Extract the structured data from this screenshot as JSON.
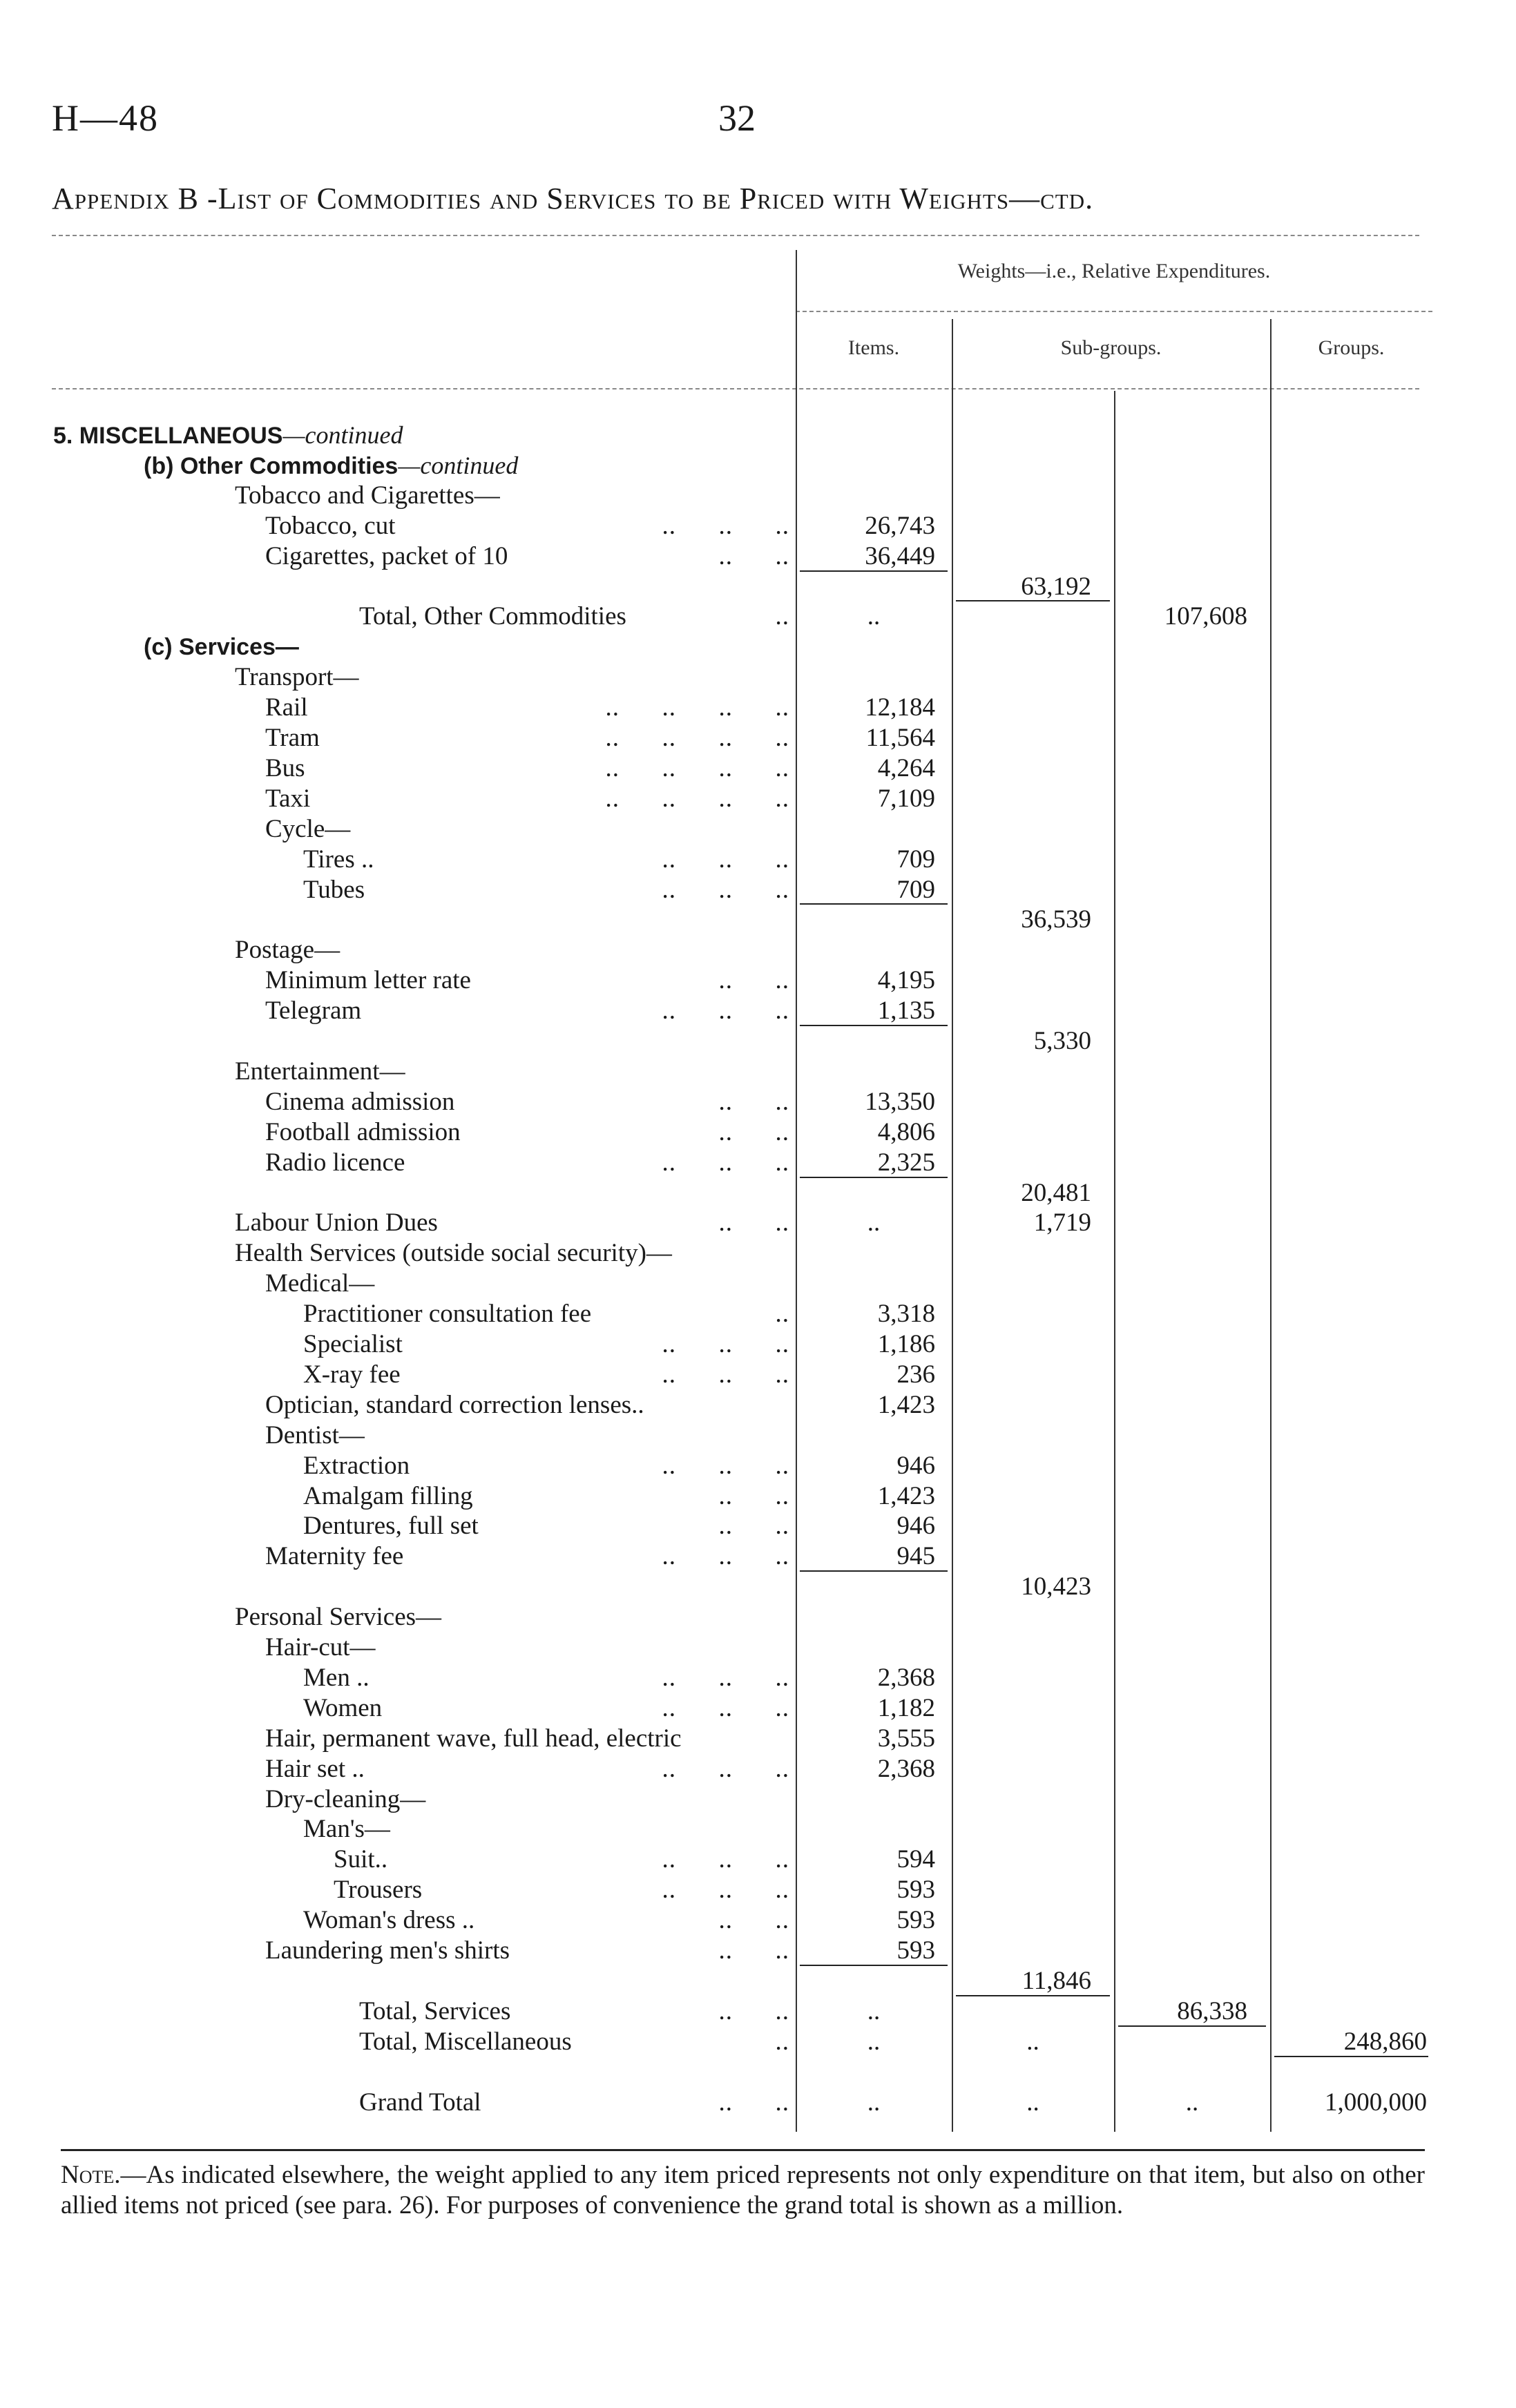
{
  "header": {
    "page_id": "H—48",
    "page_number": "32"
  },
  "title": "Appendix B -List of Commodities and Services to be Priced with Weights—ctd.",
  "column_headers": {
    "group_header": "Weights—i.e., Relative Expenditures.",
    "items": "Items.",
    "sub_groups": "Sub-groups.",
    "groups": "Groups."
  },
  "rows": [
    {
      "label": "5. MISCELLANEOUS",
      "suffix": "—continued",
      "level": 0,
      "bold": true
    },
    {
      "label": "(b) Other Commodities",
      "suffix": "—continued",
      "level": 1,
      "bold": true
    },
    {
      "label": "Tobacco and Cigarettes—",
      "level": 2
    },
    {
      "label": "Tobacco, cut",
      "leader": "..      ..      ..",
      "level": 3,
      "items": "26,743"
    },
    {
      "label": "Cigarettes, packet of 10",
      "leader": "..      ..",
      "level": 3,
      "items": "36,449"
    },
    {
      "label": "",
      "level": 3,
      "subgroups": "63,192",
      "rule": "items"
    },
    {
      "label": "Total, Other Commodities",
      "leader": "..",
      "level": 6,
      "items": "..",
      "groups_a": "107,608",
      "rule": "subgroups"
    },
    {
      "label": "(c) Services—",
      "level": 1,
      "bold": true
    },
    {
      "label": "Transport—",
      "level": 2
    },
    {
      "label": "Rail",
      "leader": "..      ..      ..      ..",
      "level": 3,
      "items": "12,184"
    },
    {
      "label": "Tram",
      "leader": "..      ..      ..      ..",
      "level": 3,
      "items": "11,564"
    },
    {
      "label": "Bus",
      "leader": "..      ..      ..      ..",
      "level": 3,
      "items": "4,264"
    },
    {
      "label": "Taxi",
      "leader": "..      ..      ..      ..",
      "level": 3,
      "items": "7,109"
    },
    {
      "label": "Cycle—",
      "level": 3
    },
    {
      "label": "Tires ..",
      "leader": "..      ..      ..",
      "level": 4,
      "items": "709"
    },
    {
      "label": "Tubes",
      "leader": "..      ..      ..",
      "level": 4,
      "items": "709"
    },
    {
      "label": "",
      "level": 3,
      "subgroups": "36,539",
      "rule": "items"
    },
    {
      "label": "Postage—",
      "level": 2
    },
    {
      "label": "Minimum letter rate",
      "leader": "..      ..",
      "level": 3,
      "items": "4,195"
    },
    {
      "label": "Telegram",
      "leader": "..      ..      ..",
      "level": 3,
      "items": "1,135"
    },
    {
      "label": "",
      "level": 3,
      "subgroups": "5,330",
      "rule": "items"
    },
    {
      "label": "Entertainment—",
      "level": 2
    },
    {
      "label": "Cinema admission",
      "leader": "..      ..",
      "level": 3,
      "items": "13,350"
    },
    {
      "label": "Football admission",
      "leader": "..      ..",
      "level": 3,
      "items": "4,806"
    },
    {
      "label": "Radio licence",
      "leader": "..      ..      ..",
      "level": 3,
      "items": "2,325"
    },
    {
      "label": "",
      "level": 3,
      "subgroups": "20,481",
      "rule": "items"
    },
    {
      "label": "Labour Union Dues",
      "leader": "..      ..",
      "level": 2,
      "items": "..",
      "subgroups": "1,719"
    },
    {
      "label": "Health Services (outside social security)—",
      "level": 2
    },
    {
      "label": "Medical—",
      "level": 3
    },
    {
      "label": "Practitioner consultation fee",
      "leader": "..",
      "level": 4,
      "items": "3,318"
    },
    {
      "label": "Specialist",
      "leader": "..      ..      ..",
      "level": 4,
      "items": "1,186"
    },
    {
      "label": "X-ray fee",
      "leader": "..      ..      ..",
      "level": 4,
      "items": "236"
    },
    {
      "label": "Optician, standard correction lenses..",
      "level": 3,
      "items": "1,423"
    },
    {
      "label": "Dentist—",
      "level": 3
    },
    {
      "label": "Extraction",
      "leader": "..      ..      ..",
      "level": 4,
      "items": "946"
    },
    {
      "label": "Amalgam filling",
      "leader": "..      ..",
      "level": 4,
      "items": "1,423"
    },
    {
      "label": "Dentures, full set",
      "leader": "..      ..",
      "level": 4,
      "items": "946"
    },
    {
      "label": "Maternity fee",
      "leader": "..      ..      ..",
      "level": 3,
      "items": "945"
    },
    {
      "label": "",
      "level": 3,
      "subgroups": "10,423",
      "rule": "items"
    },
    {
      "label": "Personal Services—",
      "level": 2
    },
    {
      "label": "Hair-cut—",
      "level": 3
    },
    {
      "label": "Men ..",
      "leader": "..      ..      ..",
      "level": 4,
      "items": "2,368"
    },
    {
      "label": "Women",
      "leader": "..      ..      ..",
      "level": 4,
      "items": "1,182"
    },
    {
      "label": "Hair, permanent wave, full head, electric",
      "level": 3,
      "items": "3,555"
    },
    {
      "label": "Hair set ..",
      "leader": "..      ..      ..",
      "level": 3,
      "items": "2,368"
    },
    {
      "label": "Dry-cleaning—",
      "level": 3
    },
    {
      "label": "Man's—",
      "level": 4
    },
    {
      "label": "Suit..",
      "leader": "..      ..      ..",
      "level": 5,
      "items": "594"
    },
    {
      "label": "Trousers",
      "leader": "..      ..      ..",
      "level": 5,
      "items": "593"
    },
    {
      "label": "Woman's dress ..",
      "leader": "..      ..",
      "level": 4,
      "items": "593"
    },
    {
      "label": "Laundering men's shirts",
      "leader": "..      ..",
      "level": 3,
      "items": "593"
    },
    {
      "label": "",
      "level": 3,
      "subgroups": "11,846",
      "rule": "items"
    },
    {
      "label": "Total, Services",
      "leader": "..      ..",
      "level": 6,
      "items": "..",
      "groups_a": "86,338",
      "rule": "subgroups"
    },
    {
      "label": "Total, Miscellaneous",
      "leader": "..",
      "level": 6,
      "items": "..",
      "subgroups": "..",
      "groups_b": "248,860",
      "rule": "groups_a"
    },
    {
      "label": "",
      "level": 6,
      "rule": "groups_b"
    },
    {
      "label": "Grand Total",
      "leader": "..      ..",
      "level": 6,
      "items": "..",
      "subgroups": "..",
      "groups_a": "..",
      "groups_b": "1,000,000"
    }
  ],
  "note": {
    "lead": "Note.",
    "text": "—As indicated elsewhere, the weight applied to any item priced represents not only expenditure on that item, but also on other allied items not priced (see para. 26). For purposes of convenience the grand total is shown as a million."
  }
}
